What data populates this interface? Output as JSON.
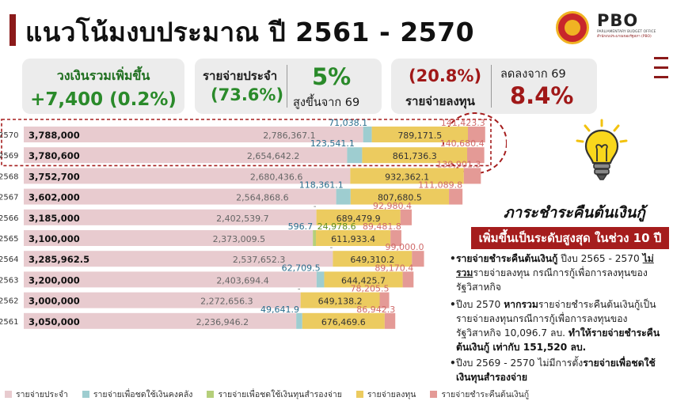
{
  "title": "แนวโน้มงบประมาณ ปี 2561 - 2570",
  "logo": {
    "pbo": "PBO",
    "sub_en": "PARLIAMENTARY BUDGET OFFICE",
    "sub_th": "สำนักงบประมาณของรัฐสภา (PBO)"
  },
  "cards": {
    "total": {
      "label": "วงเงินรวมเพิ่มขึ้น",
      "value": "+7,400 (0.2%)"
    },
    "recurring": {
      "label": "รายจ่ายประจำ",
      "share": "(73.6%)",
      "change": "5%",
      "note": "สูงขึ้นจาก 69"
    },
    "investment": {
      "share": "(20.8%)",
      "label": "รายจ่ายลงทุน",
      "note": "ลดลงจาก 69",
      "change": "8.4%"
    }
  },
  "colors": {
    "recurring": "#e8cbcf",
    "treasury": "#9ecdd0",
    "reserve": "#b5cf7a",
    "investment": "#eccb5f",
    "debt": "#e49a96",
    "accent": "#a51d1d"
  },
  "chart_data": {
    "type": "bar",
    "orientation": "horizontal",
    "stacked": true,
    "categories": [
      "2570",
      "2569",
      "2568",
      "2567",
      "2566",
      "2565",
      "2564",
      "2563",
      "2562",
      "2561"
    ],
    "totals": [
      "3,788,000",
      "3,780,600",
      "3,752,700",
      "3,602,000",
      "3,185,000",
      "3,100,000",
      "3,285,962.5",
      "3,200,000",
      "3,000,000",
      "3,050,000"
    ],
    "series": [
      {
        "name": "รายจ่ายประจำ",
        "values": [
          2786367.1,
          2654642.2,
          2680436.6,
          2564868.6,
          2402539.7,
          2373009.5,
          2537652.3,
          2403694.4,
          2272656.3,
          2236946.2
        ],
        "labels": [
          "2,786,367.1",
          "2,654,642.2",
          "2,680,436.6",
          "2,564,868.6",
          "2,402,539.7",
          "2,373,009.5",
          "2,537,652.3",
          "2,403,694.4",
          "2,272,656.3",
          "2,236,946.2"
        ]
      },
      {
        "name": "รายจ่ายเพื่อชดใช้เงินคงคลัง",
        "values": [
          71038.1,
          123541.1,
          0,
          118361.1,
          0,
          596.7,
          0,
          62709.5,
          0,
          49641.9
        ],
        "labels": [
          "71,038.1",
          "123,541.1",
          "-",
          "118,361.1",
          "-",
          "596.7",
          "-",
          "62,709.5",
          "-",
          "49,641.9"
        ]
      },
      {
        "name": "รายจ่ายเพื่อชดใช้เงินทุนสำรองจ่าย",
        "values": [
          0,
          0,
          0,
          0,
          0,
          24978.6,
          0,
          0,
          0,
          0
        ],
        "labels": [
          "",
          "",
          "",
          "",
          "",
          "24,978.6",
          "",
          "",
          "",
          ""
        ]
      },
      {
        "name": "รายจ่ายลงทุน",
        "values": [
          789171.5,
          861736.3,
          932362.1,
          807680.5,
          689479.9,
          611933.4,
          649310.2,
          644425.7,
          649138.2,
          676469.6
        ],
        "labels": [
          "789,171.5",
          "861,736.3",
          "932,362.1",
          "807,680.5",
          "689,479.9",
          "611,933.4",
          "649,310.2",
          "644,425.7",
          "649,138.2",
          "676,469.6"
        ]
      },
      {
        "name": "รายจ่ายชำระคืนต้นเงินกู้",
        "values": [
          141423.3,
          140680.4,
          139901.3,
          111089.8,
          92980.4,
          89481.8,
          99000.0,
          89170.4,
          78205.5,
          86942.3
        ],
        "labels": [
          "141,423.3",
          "140,680.4",
          "139,901.3",
          "111,089.8",
          "92,980.4",
          "89,481.8",
          "99,000.0",
          "89,170.4",
          "78,205.5",
          "86,942.3"
        ]
      }
    ]
  },
  "panel": {
    "title": "ภาระชำระคืนต้นเงินกู้",
    "banner": "เพิ่มขึ้นเป็นระดับสูงสุด ในช่วง 10 ปี",
    "b1_a": "รายจ่ายชำระคืนต้นเงินกู้",
    "b1_b": " ปีงบ 2565 - 2570 ",
    "b1_c": "ไม่รวม",
    "b1_d": "รายจ่ายลงทุน กรณีการกู้เพื่อการลงทุนของรัฐวิสาหกิจ",
    "b2_a": "ปีงบ 2570 ",
    "b2_b": "หากรวม",
    "b2_c": "รายจ่ายชำระคืนต้นเงินกู้เป็นรายจ่ายลงทุนกรณีการกู้เพื่อการลงทุนของรัฐวิสาหกิจ 10,096.7 ลบ. ",
    "b2_d": "ทำให้รายจ่ายชำระคืนต้นเงินกู้ เท่ากับ 151,520 ลบ.",
    "b3_a": "ปีงบ 2569 - 2570 ไม่มีการตั้ง",
    "b3_b": "รายจ่ายเพื่อชดใช้เงินทุนสำรองจ่าย"
  }
}
